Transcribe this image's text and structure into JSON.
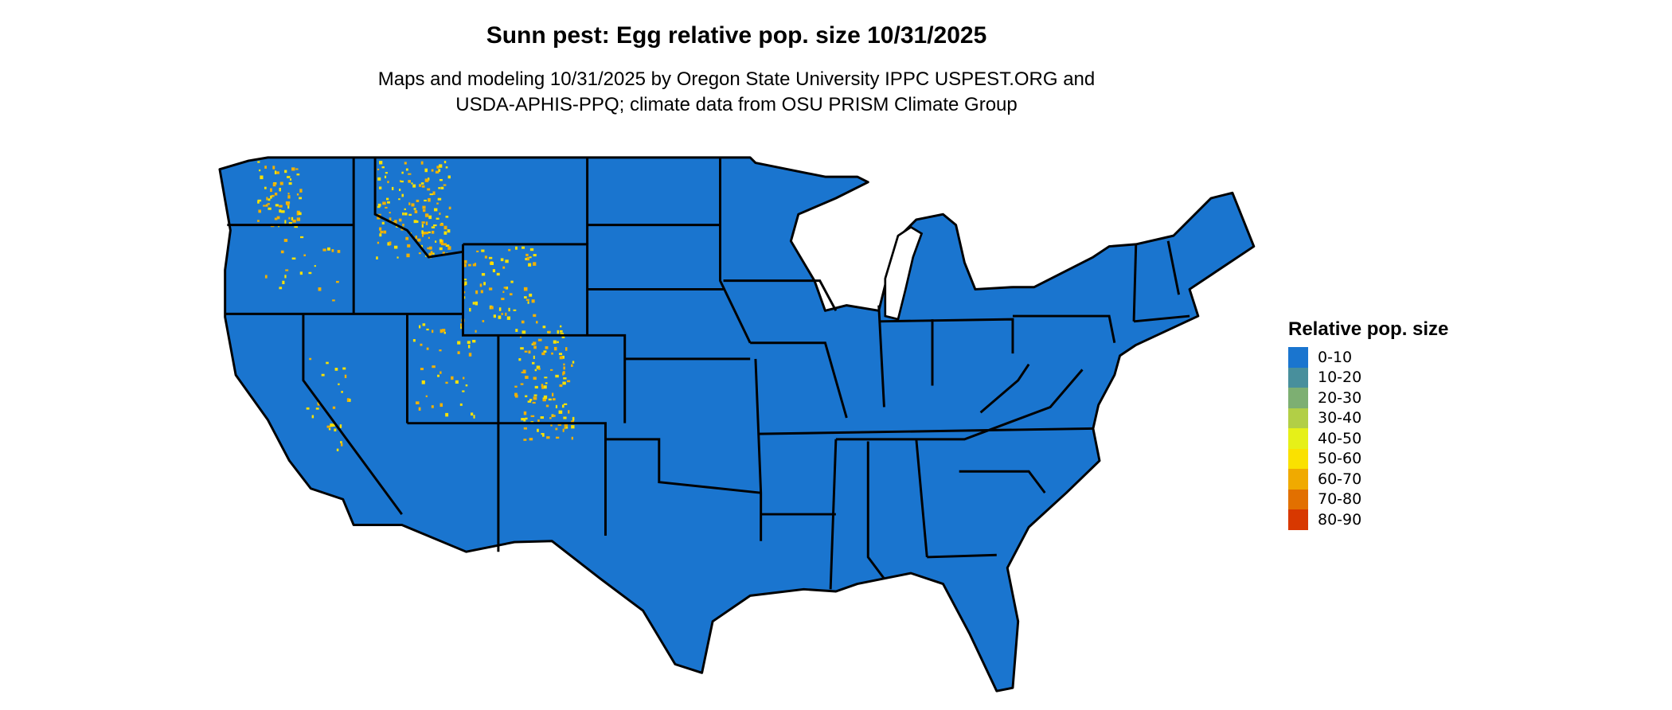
{
  "title": "Sunn pest: Egg relative pop. size 10/31/2025",
  "subtitle_lines": [
    "Maps and modeling 10/31/2025 by Oregon State University IPPC USPEST.ORG and",
    "USDA-APHIS-PPQ; climate data from OSU PRISM Climate Group"
  ],
  "map": {
    "region": "Contiguous United States with state boundaries",
    "base_color": "#1a75cf",
    "border_color": "#000000",
    "highlight_color": "#f0b000"
  },
  "legend": {
    "title": "Relative pop. size",
    "items": [
      {
        "label": "0-10",
        "color": "#1a75cf"
      },
      {
        "label": "10-20",
        "color": "#488f9c"
      },
      {
        "label": "20-30",
        "color": "#7daf72"
      },
      {
        "label": "30-40",
        "color": "#b2cf46"
      },
      {
        "label": "40-50",
        "color": "#e6f018"
      },
      {
        "label": "50-60",
        "color": "#fae100"
      },
      {
        "label": "60-70",
        "color": "#f0aa00"
      },
      {
        "label": "70-80",
        "color": "#e27000"
      },
      {
        "label": "80-90",
        "color": "#d83800"
      }
    ]
  }
}
